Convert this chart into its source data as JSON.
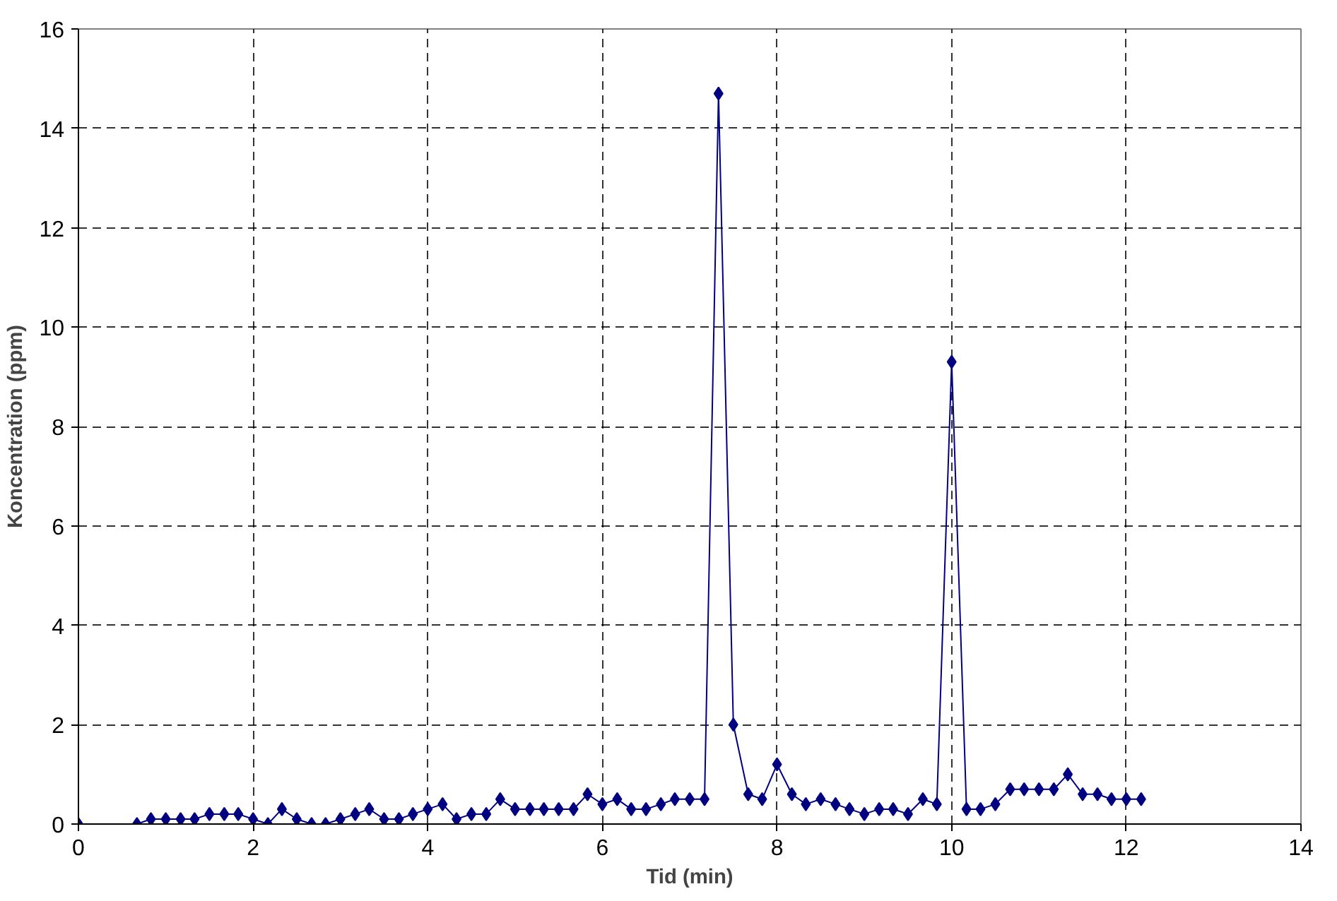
{
  "chart_data": {
    "type": "line",
    "xlabel": "Tid (min)",
    "ylabel": "Koncentration (ppm)",
    "xlim": [
      0,
      14
    ],
    "ylim": [
      0,
      16
    ],
    "xticks": [
      0,
      2,
      4,
      6,
      8,
      10,
      12,
      14
    ],
    "yticks": [
      0,
      2,
      4,
      6,
      8,
      10,
      12,
      14,
      16
    ],
    "grid": true,
    "marker": "diamond",
    "line_style": "solid",
    "x": [
      0,
      0.33,
      0.5,
      0.67,
      0.83,
      1.0,
      1.17,
      1.33,
      1.5,
      1.67,
      1.83,
      2.0,
      2.17,
      2.33,
      2.5,
      2.67,
      2.83,
      3.0,
      3.17,
      3.33,
      3.5,
      3.67,
      3.83,
      4.0,
      4.17,
      4.33,
      4.5,
      4.67,
      4.83,
      5.0,
      5.17,
      5.33,
      5.5,
      5.67,
      5.83,
      6.0,
      6.17,
      6.33,
      6.5,
      6.67,
      6.83,
      7.0,
      7.17,
      7.33,
      7.5,
      7.67,
      7.83,
      8.0,
      8.17,
      8.33,
      8.5,
      8.67,
      8.83,
      9.0,
      9.17,
      9.33,
      9.5,
      9.67,
      9.83,
      10.0,
      10.17,
      10.33,
      10.5,
      10.67,
      10.83,
      11.0,
      11.17,
      11.33,
      11.5,
      11.67,
      11.83,
      12.0,
      12.17
    ],
    "series": [
      {
        "color": "#000080",
        "values": [
          0,
          null,
          null,
          0,
          0.1,
          0.1,
          0.1,
          0.1,
          0.2,
          0.2,
          0.2,
          0.1,
          0,
          0.3,
          0.1,
          0,
          0,
          0.1,
          0.2,
          0.3,
          0.1,
          0.1,
          0.2,
          0.3,
          0.4,
          0.1,
          0.2,
          0.2,
          0.5,
          0.3,
          0.3,
          0.3,
          0.3,
          0.3,
          0.6,
          0.4,
          0.5,
          0.3,
          0.3,
          0.4,
          0.5,
          0.5,
          0.5,
          14.7,
          2.0,
          0.6,
          0.5,
          1.2,
          0.6,
          0.4,
          0.5,
          0.4,
          0.3,
          0.2,
          0.3,
          0.3,
          0.2,
          0.5,
          0.4,
          9.3,
          0.3,
          0.3,
          0.4,
          0.7,
          0.7,
          0.7,
          0.7,
          1.0,
          0.6,
          0.6,
          0.5,
          0.5,
          0.5
        ]
      }
    ]
  }
}
